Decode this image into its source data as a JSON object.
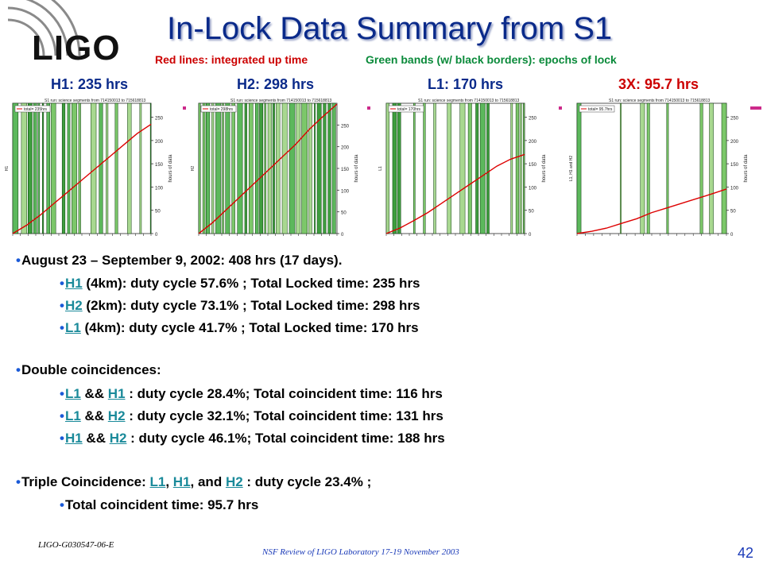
{
  "header": {
    "logo": "LIGO",
    "title": "In-Lock Data Summary from S1",
    "subtitle_red": "Red lines: integrated up time",
    "subtitle_green": "Green bands (w/ black borders): epochs of lock"
  },
  "panel_titles": [
    "H1: 235 hrs",
    "H2: 298 hrs",
    "L1: 170 hrs",
    "3X: 95.7 hrs"
  ],
  "colors": {
    "title": "#0a2a8a",
    "red": "#cc0000",
    "green": "#0a8a3a",
    "link": "#1a8a9a",
    "band": "#5cb85c"
  },
  "chart_data": [
    {
      "type": "line",
      "title": "S1 run: science segments from 714150013 to 715618813",
      "legend": "total= 235hrs",
      "ylabel": "hours of data",
      "yaxis_left": "H1",
      "yticks": [
        0,
        50,
        100,
        150,
        200,
        250
      ],
      "ylim": [
        0,
        280
      ],
      "x": [
        0,
        0.1,
        0.2,
        0.3,
        0.4,
        0.5,
        0.6,
        0.7,
        0.8,
        0.9,
        1.0
      ],
      "values": [
        0,
        18,
        40,
        65,
        90,
        115,
        140,
        165,
        190,
        215,
        235
      ],
      "band_density": 0.58
    },
    {
      "type": "line",
      "title": "S1 run: science segments from 714150013 to 715618813",
      "legend": "total= 298hrs",
      "ylabel": "hours of data",
      "yaxis_left": "H2",
      "yticks": [
        0,
        50,
        100,
        150,
        200,
        250
      ],
      "ylim": [
        0,
        300
      ],
      "x": [
        0,
        0.1,
        0.2,
        0.3,
        0.4,
        0.5,
        0.6,
        0.7,
        0.8,
        0.9,
        1.0
      ],
      "values": [
        0,
        25,
        55,
        85,
        115,
        145,
        175,
        205,
        240,
        270,
        298
      ],
      "band_density": 0.73
    },
    {
      "type": "line",
      "title": "S1 run: science segments from 714150013 to 715618813",
      "legend": "total= 170hrs",
      "ylabel": "hours of data",
      "yaxis_left": "L1",
      "yticks": [
        0,
        50,
        100,
        150,
        200,
        250
      ],
      "ylim": [
        0,
        280
      ],
      "x": [
        0,
        0.1,
        0.2,
        0.3,
        0.4,
        0.5,
        0.6,
        0.7,
        0.8,
        0.9,
        1.0
      ],
      "values": [
        0,
        12,
        28,
        45,
        65,
        85,
        105,
        125,
        145,
        160,
        170
      ],
      "band_density": 0.42
    },
    {
      "type": "line",
      "title": "S1 run: science segments from 714150013 to 715618813",
      "legend": "total= 95.7hrs",
      "ylabel": "hours of data",
      "yaxis_left": "L1, H1 and H2",
      "yticks": [
        0,
        50,
        100,
        150,
        200,
        250
      ],
      "ylim": [
        0,
        280
      ],
      "x": [
        0,
        0.1,
        0.2,
        0.3,
        0.4,
        0.5,
        0.6,
        0.7,
        0.8,
        0.9,
        1.0
      ],
      "values": [
        0,
        5,
        12,
        22,
        32,
        45,
        55,
        65,
        75,
        85,
        95.7
      ],
      "band_density": 0.23
    }
  ],
  "bullets": {
    "summary": "August 23 – September 9, 2002: 408 hrs (17 days).",
    "h1": {
      "link": "H1",
      "text": " (4km): duty cycle 57.6% ; Total Locked time: 235 hrs"
    },
    "h2": {
      "link": "H2",
      "text": " (2km): duty cycle 73.1% ; Total Locked time: 298 hrs"
    },
    "l1": {
      "link": "L1",
      "text": " (4km): duty cycle 41.7% ; Total Locked time: 170 hrs"
    },
    "double_heading": "Double coincidences:",
    "d1": {
      "a": "L1",
      "sep": " && ",
      "b": "H1",
      "text": " : duty cycle 28.4%; Total coincident time: 116 hrs"
    },
    "d2": {
      "a": "L1",
      "sep": " && ",
      "b": "H2",
      "text": " : duty cycle 32.1%; Total coincident time: 131 hrs"
    },
    "d3": {
      "a": "H1",
      "sep": " && ",
      "b": "H2",
      "text": " : duty cycle 46.1%; Total coincident time: 188 hrs"
    },
    "triple": {
      "pre": "Triple Coincidence: ",
      "a": "L1",
      "c1": ", ",
      "b": "H1",
      "c2": ", and ",
      "c": "H2",
      "text": " : duty cycle 23.4% ;"
    },
    "triple_total": "Total coincident time: 95.7 hrs"
  },
  "footer": {
    "doc_id": "LIGO-G030547-06-E",
    "review": "NSF Review of LIGO Laboratory 17-19 November 2003",
    "page": "42"
  }
}
